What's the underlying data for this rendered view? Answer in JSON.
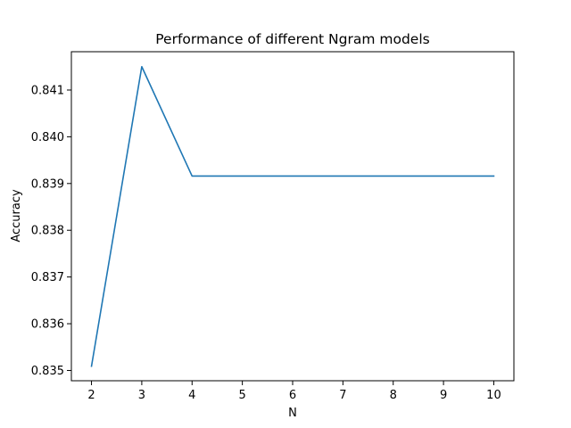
{
  "chart_data": {
    "type": "line",
    "title": "Performance of different Ngram models",
    "xlabel": "N",
    "ylabel": "Accuracy",
    "x": [
      2,
      3,
      4,
      5,
      6,
      7,
      8,
      9,
      10
    ],
    "series": [
      {
        "values": [
          0.83509,
          0.8415,
          0.83916,
          0.83916,
          0.83916,
          0.83916,
          0.83916,
          0.83916,
          0.83916
        ],
        "color": "#1f77b4"
      }
    ],
    "xticks": [
      "2",
      "3",
      "4",
      "5",
      "6",
      "7",
      "8",
      "9",
      "10"
    ],
    "yticks": [
      "0.835",
      "0.836",
      "0.837",
      "0.838",
      "0.839",
      "0.840",
      "0.841"
    ],
    "xlim": [
      1.6,
      10.4
    ],
    "ylim": [
      0.83478,
      0.84182
    ],
    "grid": false,
    "legend": "none"
  }
}
